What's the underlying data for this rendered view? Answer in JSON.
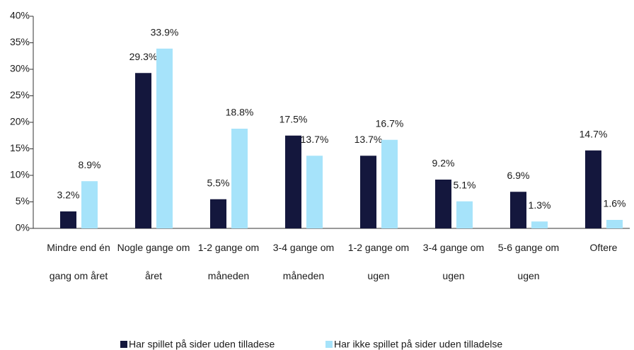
{
  "chart_data": {
    "type": "bar",
    "categories": [
      "Mindre end én gang om året",
      "Nogle gange om året",
      "1-2 gange om måneden",
      "3-4 gange om måneden",
      "1-2 gange om ugen",
      "3-4 gange om ugen",
      "5-6 gange om ugen",
      "Oftere"
    ],
    "series": [
      {
        "name": "Har spillet på sider uden tilladese",
        "color": "#14173d",
        "values": [
          3.2,
          29.3,
          5.5,
          17.5,
          13.7,
          9.2,
          6.9,
          14.7
        ],
        "value_labels": [
          "3.2%",
          "29.3%",
          "5.5%",
          "17.5%",
          "13.7%",
          "9.2%",
          "6.9%",
          "14.7%"
        ]
      },
      {
        "name": "Har ikke spillet på sider uden tilladelse",
        "color": "#a6e3fa",
        "values": [
          8.9,
          33.9,
          18.8,
          13.7,
          16.7,
          5.1,
          1.3,
          1.6
        ],
        "value_labels": [
          "8.9%",
          "33.9%",
          "18.8%",
          "13.7%",
          "16.7%",
          "5.1%",
          "1.3%",
          "1.6%"
        ]
      }
    ],
    "ylim": [
      0,
      40
    ],
    "yticks": [
      {
        "value": 0,
        "label": "0%"
      },
      {
        "value": 5,
        "label": "5%"
      },
      {
        "value": 10,
        "label": "10%"
      },
      {
        "value": 15,
        "label": "15%"
      },
      {
        "value": 20,
        "label": "20%"
      },
      {
        "value": 25,
        "label": "25%"
      },
      {
        "value": 30,
        "label": "30%"
      },
      {
        "value": 35,
        "label": "35%"
      },
      {
        "value": 40,
        "label": "40%"
      }
    ],
    "grid": false,
    "legend": "bottom"
  }
}
